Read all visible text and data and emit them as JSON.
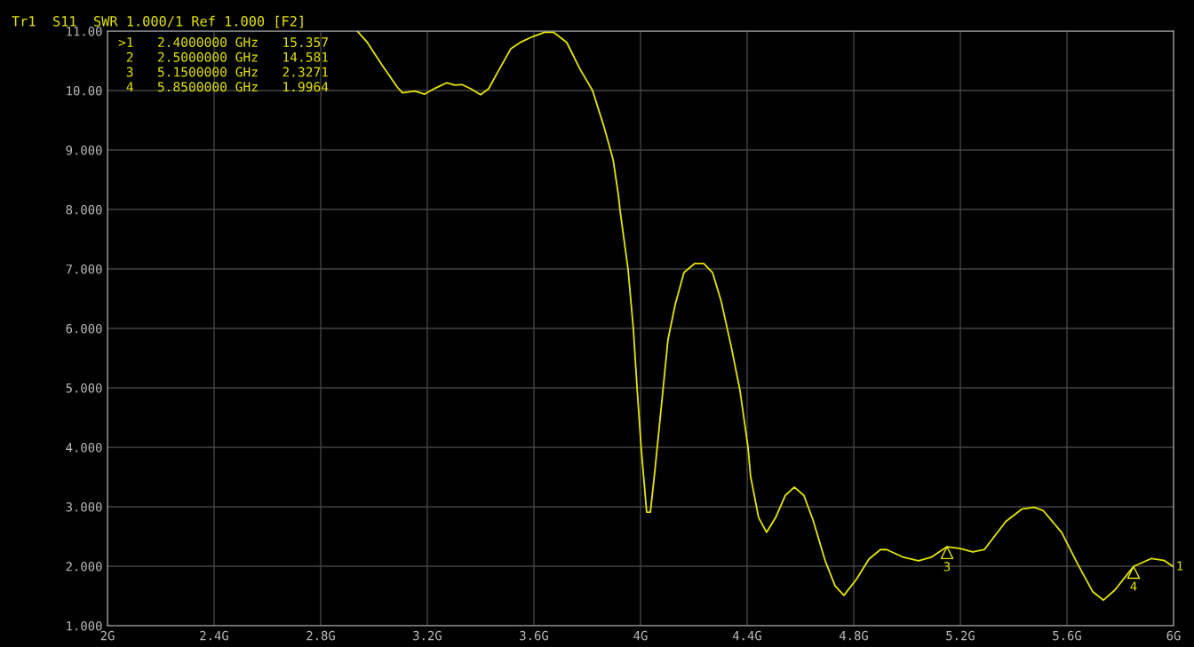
{
  "chart_data": {
    "type": "line",
    "title": "Tr1  S11  SWR 1.000/1 Ref 1.000 [F2]",
    "x": [
      2.937,
      2.973,
      3.03,
      3.087,
      3.107,
      3.153,
      3.19,
      3.23,
      3.273,
      3.303,
      3.33,
      3.363,
      3.4,
      3.43,
      3.463,
      3.513,
      3.553,
      3.597,
      3.64,
      3.673,
      3.723,
      3.773,
      3.82,
      3.863,
      3.897,
      3.917,
      3.923,
      3.953,
      3.973,
      3.987,
      4.003,
      4.023,
      4.037,
      4.053,
      4.073,
      4.103,
      4.13,
      4.163,
      4.203,
      4.237,
      4.27,
      4.303,
      4.34,
      4.373,
      4.403,
      4.413,
      4.443,
      4.473,
      4.507,
      4.543,
      4.577,
      4.613,
      4.647,
      4.693,
      4.73,
      4.763,
      4.81,
      4.857,
      4.9,
      4.923,
      4.987,
      5.043,
      5.09,
      5.15,
      5.197,
      5.247,
      5.29,
      5.37,
      5.43,
      5.477,
      5.51,
      5.58,
      5.64,
      5.697,
      5.737,
      5.78,
      5.85,
      5.917,
      5.963,
      6.0
    ],
    "series": [
      {
        "color": "#e6e600",
        "values": [
          11.0,
          10.82,
          10.43,
          10.06,
          9.96,
          9.99,
          9.94,
          10.04,
          10.13,
          10.09,
          10.1,
          10.03,
          9.93,
          10.03,
          10.3,
          10.7,
          10.82,
          10.91,
          10.98,
          10.98,
          10.81,
          10.36,
          10.0,
          9.39,
          8.84,
          8.24,
          7.99,
          7.0,
          6.0,
          5.0,
          3.96,
          2.91,
          2.91,
          3.57,
          4.46,
          5.81,
          6.4,
          6.94,
          7.09,
          7.09,
          6.94,
          6.45,
          5.7,
          4.96,
          4.01,
          3.51,
          2.82,
          2.57,
          2.82,
          3.19,
          3.33,
          3.19,
          2.78,
          2.09,
          1.67,
          1.51,
          1.78,
          2.12,
          2.28,
          2.28,
          2.15,
          2.09,
          2.15,
          2.3271,
          2.3,
          2.24,
          2.28,
          2.75,
          2.96,
          2.99,
          2.94,
          2.57,
          2.04,
          1.57,
          1.43,
          1.6,
          1.9964,
          2.13,
          2.1,
          1.99
        ]
      }
    ],
    "xlim": [
      2,
      6
    ],
    "xticks": [
      {
        "value": 2,
        "label": "2G"
      },
      {
        "value": 2.4,
        "label": "2.4G"
      },
      {
        "value": 2.8,
        "label": "2.8G"
      },
      {
        "value": 3.2,
        "label": "3.2G"
      },
      {
        "value": 3.6,
        "label": "3.6G"
      },
      {
        "value": 4,
        "label": "4G"
      },
      {
        "value": 4.4,
        "label": "4.4G"
      },
      {
        "value": 4.8,
        "label": "4.8G"
      },
      {
        "value": 5.2,
        "label": "5.2G"
      },
      {
        "value": 5.6,
        "label": "5.6G"
      },
      {
        "value": 6,
        "label": "6G"
      }
    ],
    "ylim": [
      1,
      11
    ],
    "yticks": [
      {
        "value": 1,
        "label": "1.000"
      },
      {
        "value": 2,
        "label": "2.000"
      },
      {
        "value": 3,
        "label": "3.000"
      },
      {
        "value": 4,
        "label": "4.000"
      },
      {
        "value": 5,
        "label": "5.000"
      },
      {
        "value": 6,
        "label": "6.000"
      },
      {
        "value": 7,
        "label": "7.000"
      },
      {
        "value": 8,
        "label": "8.000"
      },
      {
        "value": 9,
        "label": "9.000"
      },
      {
        "value": 10,
        "label": "10.00"
      },
      {
        "value": 11,
        "label": "11.00"
      }
    ],
    "grid": true,
    "annotations": [
      ">1   2.4000000 GHz   15.357",
      " 2   2.5000000 GHz   14.581",
      " 3   5.1500000 GHz   2.3271",
      " 4   5.8500000 GHz   1.9964",
      {
        "text": "3",
        "x": 5.15,
        "y": 2.3271
      },
      {
        "text": "4",
        "x": 5.85,
        "y": 1.9964
      },
      {
        "text": "1",
        "x": 6.0,
        "y": 1.99
      }
    ]
  }
}
